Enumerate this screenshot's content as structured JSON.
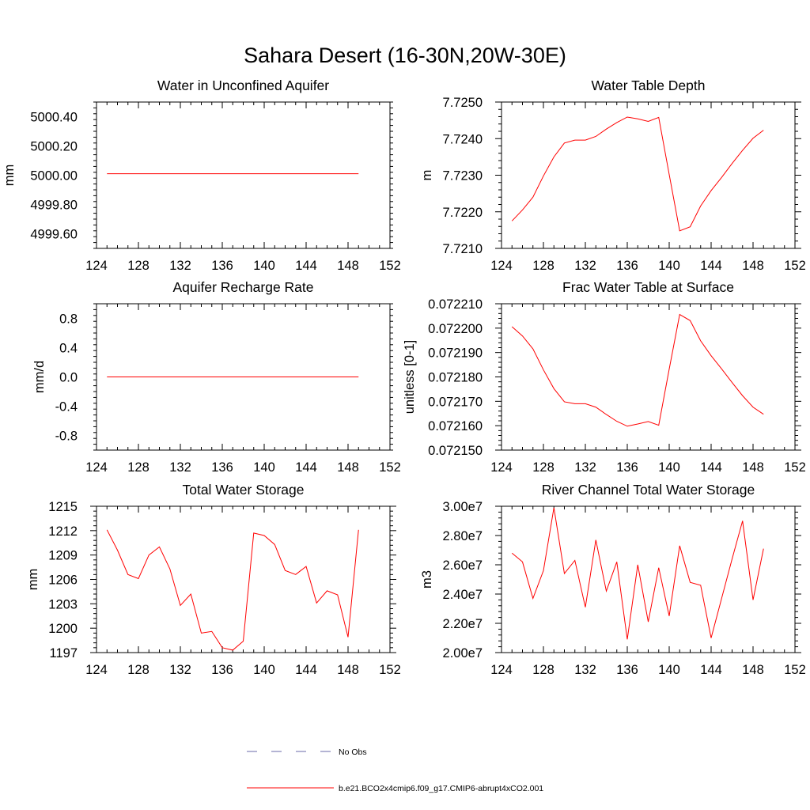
{
  "title": "Sahara Desert (16-30N,20W-30E)",
  "x_values": [
    125,
    126,
    127,
    128,
    129,
    130,
    131,
    132,
    133,
    134,
    135,
    136,
    137,
    138,
    139,
    140,
    141,
    142,
    143,
    144,
    145,
    146,
    147,
    148,
    149
  ],
  "chart_data": [
    {
      "type": "line",
      "title": "Water in Unconfined Aquifer",
      "ylabel": "mm",
      "xlim": [
        124,
        152
      ],
      "ylim": [
        4999.5,
        5000.5
      ],
      "x_ticks": [
        124,
        128,
        132,
        136,
        140,
        144,
        148,
        152
      ],
      "x_tick_labels": [
        "124",
        "128",
        "132",
        "136",
        "140",
        "144",
        "148",
        "152"
      ],
      "y_ticks": [
        4999.6,
        4999.8,
        5000.0,
        5000.2,
        5000.4
      ],
      "y_tick_labels": [
        "4999.60",
        "4999.80",
        "5000.00",
        "5000.20",
        "5000.40"
      ],
      "series": [
        {
          "values": [
            5000.01,
            5000.01,
            5000.01,
            5000.01,
            5000.01,
            5000.01,
            5000.01,
            5000.01,
            5000.01,
            5000.01,
            5000.01,
            5000.01,
            5000.01,
            5000.01,
            5000.01,
            5000.01,
            5000.01,
            5000.01,
            5000.01,
            5000.01,
            5000.01,
            5000.01,
            5000.01,
            5000.01,
            5000.01
          ],
          "color": "#ff0000"
        }
      ]
    },
    {
      "type": "line",
      "title": "Water Table Depth",
      "ylabel": "m",
      "xlim": [
        124,
        152
      ],
      "ylim": [
        7.721,
        7.725
      ],
      "x_ticks": [
        124,
        128,
        132,
        136,
        140,
        144,
        148,
        152
      ],
      "x_tick_labels": [
        "124",
        "128",
        "132",
        "136",
        "140",
        "144",
        "148",
        "152"
      ],
      "y_ticks": [
        7.721,
        7.722,
        7.723,
        7.724,
        7.725
      ],
      "y_tick_labels": [
        "7.7210",
        "7.7220",
        "7.7230",
        "7.7240",
        "7.7250"
      ],
      "series": [
        {
          "values": [
            7.72175,
            7.72205,
            7.7224,
            7.72298,
            7.7235,
            7.72388,
            7.72396,
            7.72396,
            7.72406,
            7.72426,
            7.72444,
            7.72459,
            7.72454,
            7.72447,
            7.72458,
            7.72302,
            7.72148,
            7.72159,
            7.72216,
            7.72258,
            7.72294,
            7.72332,
            7.72368,
            7.72401,
            7.72423
          ],
          "color": "#ff0000"
        }
      ]
    },
    {
      "type": "line",
      "title": "Aquifer Recharge Rate",
      "ylabel": "mm/d",
      "xlim": [
        124,
        152
      ],
      "ylim": [
        -1.0,
        1.0
      ],
      "x_ticks": [
        124,
        128,
        132,
        136,
        140,
        144,
        148,
        152
      ],
      "x_tick_labels": [
        "124",
        "128",
        "132",
        "136",
        "140",
        "144",
        "148",
        "152"
      ],
      "y_ticks": [
        -0.8,
        -0.4,
        0.0,
        0.4,
        0.8
      ],
      "y_tick_labels": [
        "-0.8",
        "-0.4",
        "0.0",
        "0.4",
        "0.8"
      ],
      "series": [
        {
          "values": [
            0,
            0,
            0,
            0,
            0,
            0,
            0,
            0,
            0,
            0,
            0,
            0,
            0,
            0,
            0,
            0,
            0,
            0,
            0,
            0,
            0,
            0,
            0,
            0,
            0
          ],
          "color": "#ff0000"
        }
      ]
    },
    {
      "type": "line",
      "title": "Frac Water Table at Surface",
      "ylabel": "unitless [0-1]",
      "xlim": [
        124,
        152
      ],
      "ylim": [
        0.07215,
        0.07221
      ],
      "x_ticks": [
        124,
        128,
        132,
        136,
        140,
        144,
        148,
        152
      ],
      "x_tick_labels": [
        "124",
        "128",
        "132",
        "136",
        "140",
        "144",
        "148",
        "152"
      ],
      "y_ticks": [
        0.07215,
        0.07216,
        0.07217,
        0.07218,
        0.07219,
        0.0722,
        0.07221
      ],
      "y_tick_labels": [
        "0.072150",
        "0.072160",
        "0.072170",
        "0.072180",
        "0.072190",
        "0.072200",
        "0.072210"
      ],
      "series": [
        {
          "values": [
            0.0722006,
            0.0721968,
            0.0721915,
            0.0721829,
            0.0721752,
            0.0721698,
            0.072169,
            0.072169,
            0.0721676,
            0.0721646,
            0.0721618,
            0.0721598,
            0.0721607,
            0.0721617,
            0.0721602,
            0.0721832,
            0.0722056,
            0.0722031,
            0.0721948,
            0.0721887,
            0.0721833,
            0.0721777,
            0.0721723,
            0.0721676,
            0.0721647
          ],
          "color": "#ff0000"
        }
      ]
    },
    {
      "type": "line",
      "title": "Total Water Storage",
      "ylabel": "mm",
      "xlim": [
        124,
        152
      ],
      "ylim": [
        1197,
        1215
      ],
      "x_ticks": [
        124,
        128,
        132,
        136,
        140,
        144,
        148,
        152
      ],
      "x_tick_labels": [
        "124",
        "128",
        "132",
        "136",
        "140",
        "144",
        "148",
        "152"
      ],
      "y_ticks": [
        1197,
        1200,
        1203,
        1206,
        1209,
        1212,
        1215
      ],
      "y_tick_labels": [
        "1197",
        "1200",
        "1203",
        "1206",
        "1209",
        "1212",
        "1215"
      ],
      "series": [
        {
          "values": [
            1212.1,
            1209.6,
            1206.6,
            1206.1,
            1209.0,
            1210.0,
            1207.3,
            1202.8,
            1204.2,
            1199.4,
            1199.6,
            1197.6,
            1197.3,
            1198.4,
            1211.7,
            1211.4,
            1210.3,
            1207.1,
            1206.6,
            1207.6,
            1203.1,
            1204.6,
            1204.1,
            1198.9,
            1212.1
          ],
          "color": "#ff0000"
        }
      ]
    },
    {
      "type": "line",
      "title": "River Channel Total Water Storage",
      "ylabel": "m3",
      "xlim": [
        124,
        152
      ],
      "ylim": [
        20000000,
        30000000
      ],
      "x_ticks": [
        124,
        128,
        132,
        136,
        140,
        144,
        148,
        152
      ],
      "x_tick_labels": [
        "124",
        "128",
        "132",
        "136",
        "140",
        "144",
        "148",
        "152"
      ],
      "y_ticks": [
        20000000,
        22000000,
        24000000,
        26000000,
        28000000,
        30000000
      ],
      "y_tick_labels": [
        "2.00e7",
        "2.20e7",
        "2.40e7",
        "2.60e7",
        "2.80e7",
        "3.00e7"
      ],
      "series": [
        {
          "values": [
            26800000,
            26200000,
            23700000,
            25600000,
            29900000,
            25400000,
            26300000,
            23100000,
            27700000,
            24200000,
            26200000,
            20900000,
            26000000,
            22100000,
            25800000,
            22500000,
            27300000,
            24800000,
            24600000,
            21000000,
            23700000,
            26400000,
            29000000,
            23600000,
            27100000
          ],
          "color": "#ff0000"
        }
      ]
    }
  ],
  "legend": [
    {
      "label": "No Obs",
      "style": "dashed",
      "color": "#6a6aa8"
    },
    {
      "label": "b.e21.BCO2x4cmip6.f09_g17.CMIP6-abrupt4xCO2.001",
      "style": "solid",
      "color": "#ff0000"
    }
  ]
}
